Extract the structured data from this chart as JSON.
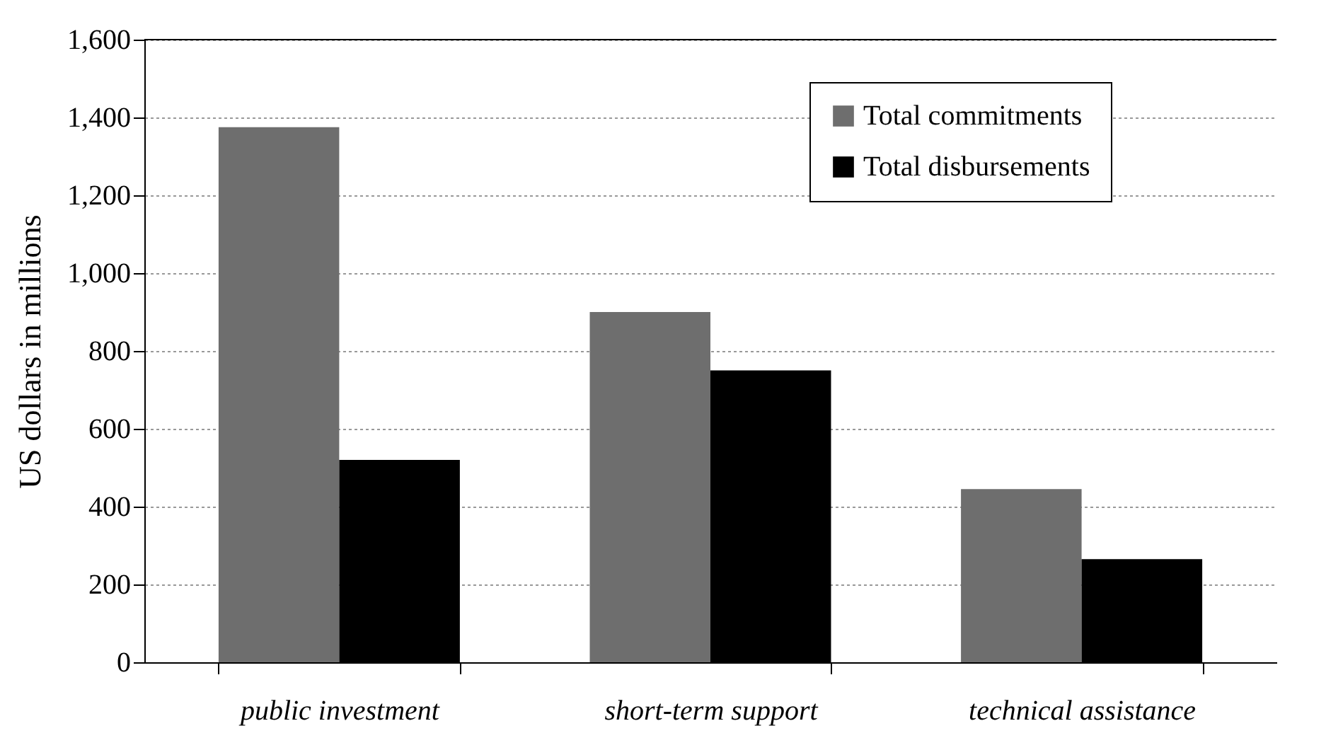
{
  "chart_data": {
    "type": "bar",
    "ylabel": "US dollars in millions",
    "categories": [
      "public investment",
      "short-term support",
      "technical assistance"
    ],
    "series": [
      {
        "name": "Total commitments",
        "color": "#6e6e6e",
        "values": [
          1375,
          900,
          445
        ]
      },
      {
        "name": "Total disbursements",
        "color": "#000000",
        "values": [
          520,
          750,
          265
        ]
      }
    ],
    "ylim": [
      0,
      1600
    ],
    "yticks": [
      0,
      200,
      400,
      600,
      800,
      {
        "value": 1000,
        "label": "1,000"
      },
      {
        "value": 1200,
        "label": "1,200"
      },
      {
        "value": 1400,
        "label": "1,400"
      },
      {
        "value": 1600,
        "label": "1,600"
      }
    ],
    "grid": "y",
    "legend": "top right"
  }
}
